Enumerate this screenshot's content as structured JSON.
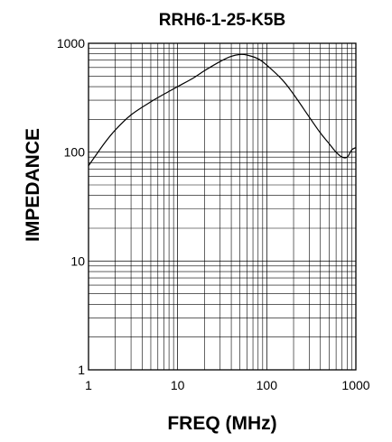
{
  "chart_data": {
    "type": "line",
    "title": "RRH6-1-25-K5B",
    "xlabel": "FREQ (MHz)",
    "ylabel": "IMPEDANCE",
    "x_scale": "log",
    "y_scale": "log",
    "xlim": [
      1,
      1000
    ],
    "ylim": [
      1,
      1000
    ],
    "x_ticks": [
      "1",
      "10",
      "100",
      "1000"
    ],
    "y_ticks": [
      "1",
      "10",
      "100",
      "1000"
    ],
    "grid": true,
    "series": [
      {
        "x": [
          1,
          1.5,
          2,
          3,
          5,
          7,
          10,
          15,
          20,
          30,
          40,
          50,
          60,
          80,
          100,
          150,
          200,
          300,
          400,
          500,
          600,
          700,
          800,
          900,
          1000
        ],
        "y": [
          75,
          120,
          160,
          220,
          290,
          340,
          400,
          480,
          560,
          680,
          760,
          790,
          780,
          720,
          630,
          460,
          340,
          210,
          150,
          120,
          100,
          90,
          90,
          105,
          110
        ],
        "color": "#000000"
      }
    ]
  }
}
